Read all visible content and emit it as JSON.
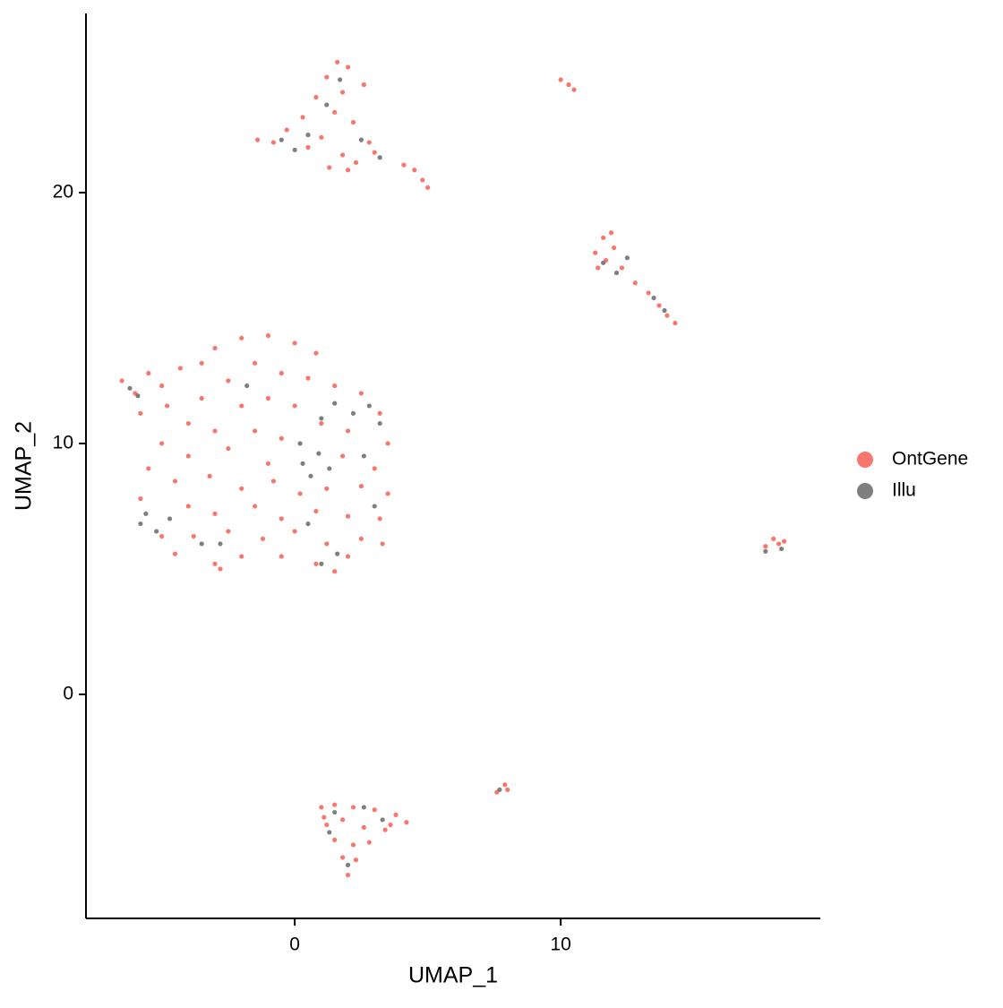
{
  "chart_data": {
    "type": "scatter",
    "x_label": "UMAP_1",
    "y_label": "UMAP_2",
    "xlim": [
      -7.85,
      19.76
    ],
    "ylim": [
      -8.93,
      27.14
    ],
    "xticks": [
      0,
      10
    ],
    "yticks": [
      0,
      10,
      20
    ],
    "legend": "right",
    "grid": false,
    "series": [
      {
        "name": "OntGene",
        "color": "#F8766D",
        "x": [
          -6.5,
          -6.0,
          -5.5,
          -5,
          -4.8,
          -5.8,
          -4.3,
          -3.5,
          -3,
          -2,
          -1,
          0,
          0.8,
          -1.5,
          -0.5,
          0.5,
          1.5,
          -2.5,
          -3.5,
          -2,
          -1,
          0,
          2.5,
          3.2,
          -4,
          -3,
          -1.5,
          -0.5,
          1,
          2,
          3.5,
          -5,
          -4,
          -2.5,
          -1,
          1.8,
          3,
          -5.5,
          -4.5,
          -3.2,
          -2,
          -0.8,
          0.2,
          1.2,
          2.5,
          3.5,
          -5.8,
          -4,
          -3,
          -1.5,
          -0.5,
          0.8,
          2,
          3.2,
          -5,
          -3.8,
          -2.5,
          -1.2,
          0,
          1.2,
          2.5,
          3.3,
          -4.5,
          -3,
          -2,
          -0.5,
          0.8,
          2,
          -2.8,
          1.5,
          -1.4,
          -0.8,
          -0.3,
          0.3,
          0.8,
          1.2,
          1.6,
          2.0,
          1.0,
          1.8,
          2.3,
          2.8,
          1.5,
          2.2,
          0.5,
          1.8,
          2.6,
          1.3,
          2.0,
          3.0,
          4.1,
          4.5,
          4.8,
          5.0,
          10.0,
          10.3,
          10.5,
          11.3,
          11.6,
          11.9,
          11.7,
          12.0,
          12.3,
          12.8,
          13.3,
          13.7,
          14.0,
          14.3,
          11.4,
          17.7,
          18.0,
          18.2,
          18.4,
          1.0,
          1.5,
          2.2,
          3.0,
          3.8,
          4.2,
          1.2,
          1.8,
          2.6,
          3.4,
          1.5,
          2.2,
          2.8,
          1.8,
          2.3,
          2.0,
          1.1,
          3.6,
          7.6,
          7.9,
          8.0
        ],
        "values": [
          12.5,
          12.0,
          12.8,
          12.3,
          11.5,
          11.2,
          13.0,
          13.2,
          13.8,
          14.2,
          14.3,
          14,
          13.6,
          13.2,
          12.8,
          12.6,
          12.3,
          12.5,
          11.8,
          11.5,
          11.8,
          11.5,
          12,
          11.2,
          10.8,
          10.5,
          10.5,
          10.2,
          10.8,
          10.5,
          10,
          10,
          9.5,
          9.8,
          9.2,
          9.5,
          9,
          9,
          8.5,
          8.7,
          8.2,
          8.5,
          8,
          8.2,
          8.3,
          8,
          7.8,
          7.5,
          7.2,
          7.5,
          7,
          7.3,
          7.1,
          7,
          6.3,
          6.3,
          6.5,
          6.2,
          6.5,
          6,
          6.2,
          6,
          5.6,
          5.2,
          5.5,
          5.5,
          5.2,
          5.5,
          5.0,
          4.9,
          22.1,
          22.0,
          22.5,
          23,
          23.8,
          24.6,
          25.2,
          25.0,
          22.2,
          21.5,
          21.2,
          22,
          23.2,
          22.8,
          21.8,
          24.0,
          24.3,
          21.0,
          20.9,
          21.6,
          21.1,
          20.9,
          20.5,
          20.2,
          24.5,
          24.3,
          24.1,
          17.6,
          18.2,
          18.4,
          17.3,
          17.8,
          17.0,
          16.4,
          16.0,
          15.5,
          15.1,
          14.8,
          17.0,
          5.9,
          6.2,
          6.0,
          6.1,
          -4.5,
          -4.4,
          -4.5,
          -4.6,
          -4.8,
          -5.1,
          -5.2,
          -5.0,
          -5.3,
          -5.4,
          -5.8,
          -6.0,
          -5.9,
          -6.5,
          -6.6,
          -7.2,
          -4.9,
          -5.2,
          -3.9,
          -3.6,
          -3.8
        ]
      },
      {
        "name": "Illu",
        "color": "#7F7F7F",
        "x": [
          0.3,
          0.6,
          0.9,
          0.2,
          1.3,
          1.5,
          2.2,
          2.8,
          3.2,
          1.0,
          -5.6,
          -5.8,
          -5.2,
          -4.7,
          -6.2,
          -5.9,
          -3.5,
          -2.8,
          1.0,
          1.6,
          2.6,
          -1.8,
          3.0,
          0.5,
          -0.5,
          0.5,
          1.2,
          1.7,
          2.5,
          3.2,
          0.0,
          11.6,
          12.1,
          12.5,
          13.5,
          13.9,
          17.7,
          18.3,
          1.5,
          2.6,
          3.3,
          2.0,
          1.3,
          7.7
        ],
        "values": [
          9.2,
          8.7,
          9.6,
          10.0,
          9.0,
          11.6,
          11.2,
          11.5,
          10.8,
          11.0,
          7.2,
          6.8,
          6.5,
          7.0,
          12.2,
          11.9,
          6.0,
          6.0,
          5.2,
          5.6,
          9.5,
          12.3,
          7.5,
          6.8,
          22.1,
          22.3,
          23.5,
          24.5,
          22.1,
          21.4,
          21.7,
          17.2,
          16.8,
          17.4,
          15.8,
          15.3,
          5.7,
          5.8,
          -4.7,
          -4.5,
          -5.0,
          -6.8,
          -5.5,
          -3.8
        ]
      }
    ]
  }
}
